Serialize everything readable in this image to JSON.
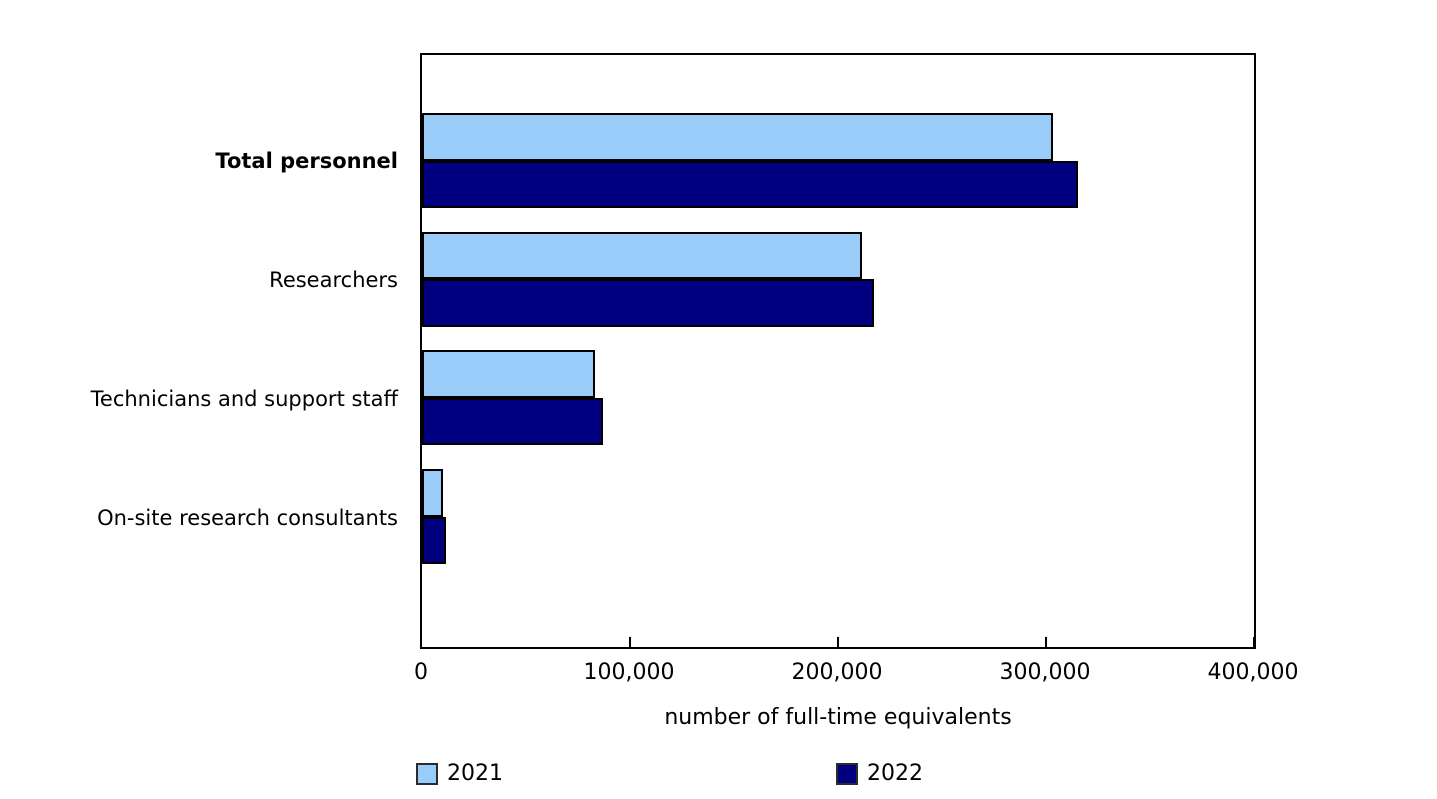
{
  "chart_data": {
    "type": "bar",
    "orientation": "horizontal",
    "title": "",
    "xlabel": "number of full-time equivalents",
    "ylabel": "",
    "xlim": [
      0,
      400000
    ],
    "xticks": [
      0,
      100000,
      200000,
      300000,
      400000
    ],
    "xtick_labels": [
      "0",
      "100,000",
      "200,000",
      "300,000",
      "400,000"
    ],
    "grid": false,
    "legend_position": "bottom",
    "categories": [
      "Total personnel",
      "Researchers",
      "Technicians and support staff",
      "On-site research consultants"
    ],
    "bold_categories": [
      "Total personnel"
    ],
    "series": [
      {
        "name": "2021",
        "color": "#99CCF9",
        "values": [
          303500,
          211500,
          83000,
          10000
        ]
      },
      {
        "name": "2022",
        "color": "#000080",
        "values": [
          315500,
          217500,
          87000,
          11500
        ]
      }
    ],
    "colors": {
      "bar_border": "#000000",
      "plot_border": "#000000",
      "background": "#FFFFFF",
      "text": "#000000"
    }
  }
}
